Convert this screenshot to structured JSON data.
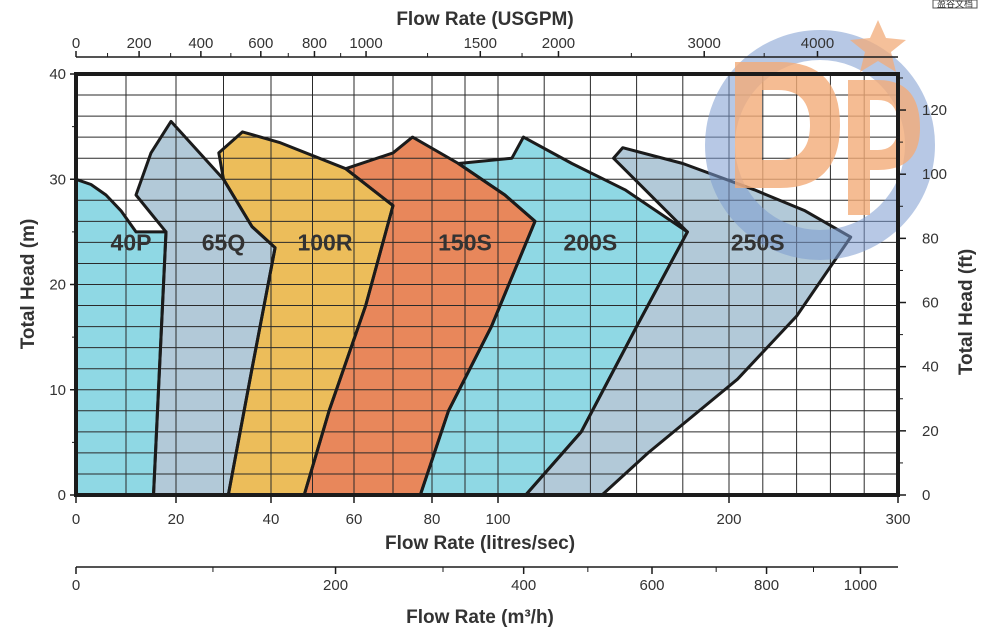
{
  "chart_data": {
    "type": "area",
    "title": "",
    "x_top_label": "Flow Rate (USGPM)",
    "x_bottom_label": "Flow Rate (litres/sec)",
    "x_bottom2_label": "Flow Rate (m³/h)",
    "y_left_label": "Total Head (m)",
    "y_right_label": "Total Head (ft)",
    "y_left_ticks": [
      "0",
      "10",
      "20",
      "30",
      "40"
    ],
    "y_right_ticks": [
      "0",
      "20",
      "40",
      "60",
      "80",
      "100",
      "120"
    ],
    "x_bottom_ticks": [
      "0",
      "20",
      "40",
      "60",
      "80",
      "100",
      "200",
      "300"
    ],
    "x_top_ticks": [
      "0",
      "200",
      "400",
      "600",
      "800",
      "1000",
      "1500",
      "2000",
      "3000",
      "4000"
    ],
    "x_bottom2_ticks": [
      "0",
      "200",
      "400",
      "600",
      "800",
      "1000"
    ],
    "grid": true,
    "regions": [
      {
        "name": "40P",
        "color": "#8fd8e4",
        "points": [
          [
            0,
            30
          ],
          [
            3,
            29.5
          ],
          [
            6,
            28.5
          ],
          [
            9,
            27
          ],
          [
            12,
            25
          ],
          [
            18,
            25
          ],
          [
            17,
            15
          ],
          [
            16,
            5
          ],
          [
            15.5,
            0
          ],
          [
            0,
            0
          ]
        ]
      },
      {
        "name": "65Q",
        "color": "#b2c9d8",
        "points": [
          [
            12,
            28.5
          ],
          [
            15,
            32.5
          ],
          [
            19,
            35.5
          ],
          [
            30,
            30
          ],
          [
            36,
            25.5
          ],
          [
            41,
            23.5
          ],
          [
            36,
            12
          ],
          [
            31,
            0
          ],
          [
            15.5,
            0
          ],
          [
            16,
            5
          ],
          [
            17,
            15
          ],
          [
            18,
            25
          ]
        ]
      },
      {
        "name": "100R",
        "color": "#ecbd5a",
        "points": [
          [
            29,
            32.5
          ],
          [
            34,
            34.5
          ],
          [
            42,
            33.5
          ],
          [
            58,
            31
          ],
          [
            70,
            27.5
          ],
          [
            63,
            18
          ],
          [
            54,
            8
          ],
          [
            48,
            0
          ],
          [
            31,
            0
          ],
          [
            36,
            12
          ],
          [
            41,
            23.5
          ],
          [
            36,
            25.5
          ],
          [
            30,
            30
          ]
        ]
      },
      {
        "name": "150S",
        "color": "#e8875b",
        "points": [
          [
            70,
            32.5
          ],
          [
            75,
            34
          ],
          [
            88,
            31.5
          ],
          [
            103,
            28.5
          ],
          [
            116,
            26
          ],
          [
            98,
            16
          ],
          [
            85,
            8
          ],
          [
            77,
            0
          ],
          [
            48,
            0
          ],
          [
            54,
            8
          ],
          [
            63,
            18
          ],
          [
            70,
            27.5
          ],
          [
            58,
            31
          ]
        ]
      },
      {
        "name": "200S",
        "color": "#8fd8e4",
        "points": [
          [
            106,
            32
          ],
          [
            111,
            34
          ],
          [
            132,
            31.5
          ],
          [
            155,
            29
          ],
          [
            182,
            25
          ],
          [
            160,
            16
          ],
          [
            136,
            6
          ],
          [
            112,
            0
          ],
          [
            77,
            0
          ],
          [
            85,
            8
          ],
          [
            98,
            16
          ],
          [
            116,
            26
          ],
          [
            103,
            28.5
          ],
          [
            88,
            31.5
          ]
        ]
      },
      {
        "name": "250S",
        "color": "#b2c9d8",
        "points": [
          [
            150,
            32
          ],
          [
            154,
            33
          ],
          [
            180,
            31.5
          ],
          [
            215,
            29
          ],
          [
            245,
            27
          ],
          [
            272,
            24.5
          ],
          [
            240,
            17
          ],
          [
            205,
            11
          ],
          [
            165,
            4
          ],
          [
            145,
            0
          ],
          [
            112,
            0
          ],
          [
            136,
            6
          ],
          [
            160,
            16
          ],
          [
            182,
            25
          ]
        ]
      }
    ],
    "region_labels": [
      "40P",
      "65Q",
      "100R",
      "150S",
      "200S",
      "250S"
    ],
    "xlim": [
      0,
      300
    ],
    "ylim": [
      0,
      40
    ]
  },
  "watermark": {
    "text": "Dp",
    "color": "#f2ab78",
    "circle_color": "#7b9ad0",
    "star_color": "#f2ab78"
  },
  "corner_stamp": "盈谷文档"
}
